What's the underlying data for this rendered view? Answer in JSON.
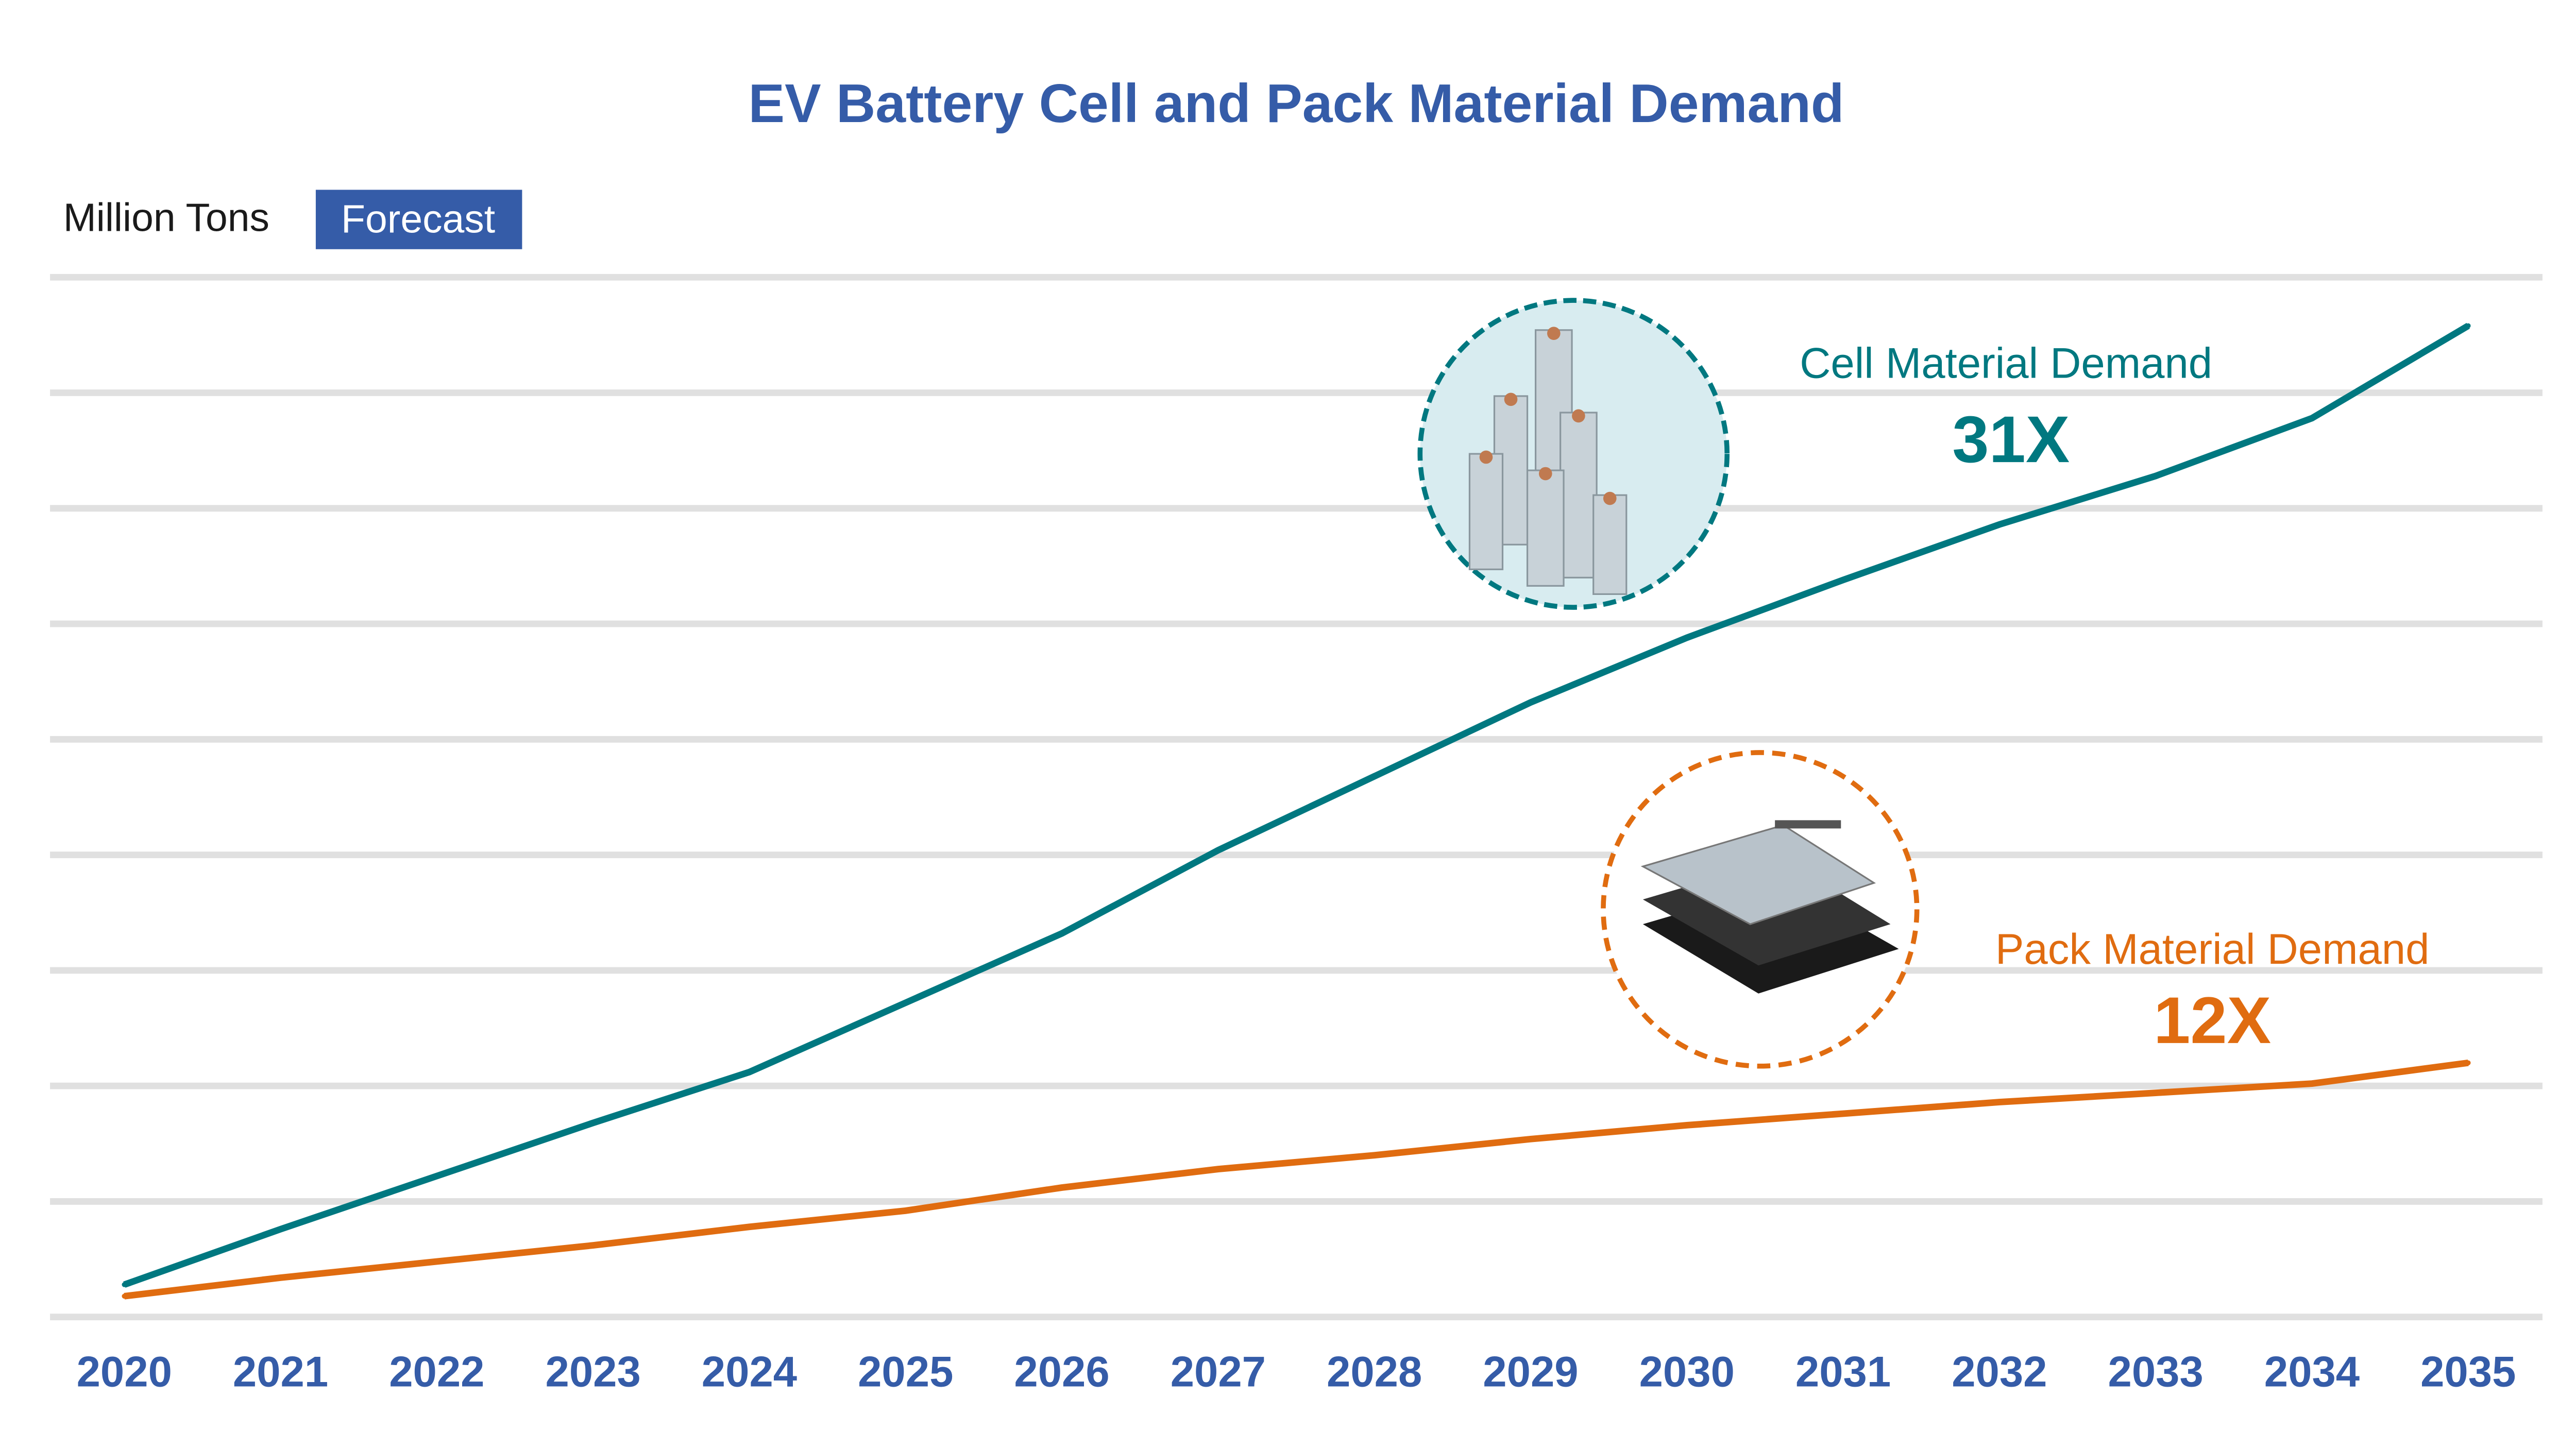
{
  "colors": {
    "title": "#355ca8",
    "cell": "#007880",
    "pack": "#e06c10",
    "grid": "#e0e0e0",
    "badge": "#355ca8"
  },
  "chart_data": {
    "type": "line",
    "title": "EV Battery Cell and Pack Material Demand",
    "unit_label": "Million Tons",
    "badge_label": "Forecast",
    "xlabel": "",
    "ylabel": "",
    "x": [
      "2020",
      "2021",
      "2022",
      "2023",
      "2024",
      "2025",
      "2026",
      "2027",
      "2028",
      "2029",
      "2030",
      "2031",
      "2032",
      "2033",
      "2034",
      "2035"
    ],
    "ylim": [
      0,
      45
    ],
    "grid": true,
    "series": [
      {
        "name": "Cell Material Demand",
        "multiplier": "31X",
        "color": "#007880",
        "icon": "battery-cells-icon",
        "values": [
          1.4,
          3.8,
          6.1,
          8.4,
          10.6,
          13.6,
          16.6,
          20.2,
          23.4,
          26.6,
          29.4,
          31.9,
          34.3,
          36.4,
          38.9,
          42.9
        ]
      },
      {
        "name": "Pack Material Demand",
        "multiplier": "12X",
        "color": "#e06c10",
        "icon": "battery-pack-icon",
        "values": [
          0.9,
          1.7,
          2.4,
          3.1,
          3.9,
          4.6,
          5.6,
          6.4,
          7.0,
          7.7,
          8.3,
          8.8,
          9.3,
          9.7,
          10.1,
          11.0
        ]
      }
    ]
  }
}
